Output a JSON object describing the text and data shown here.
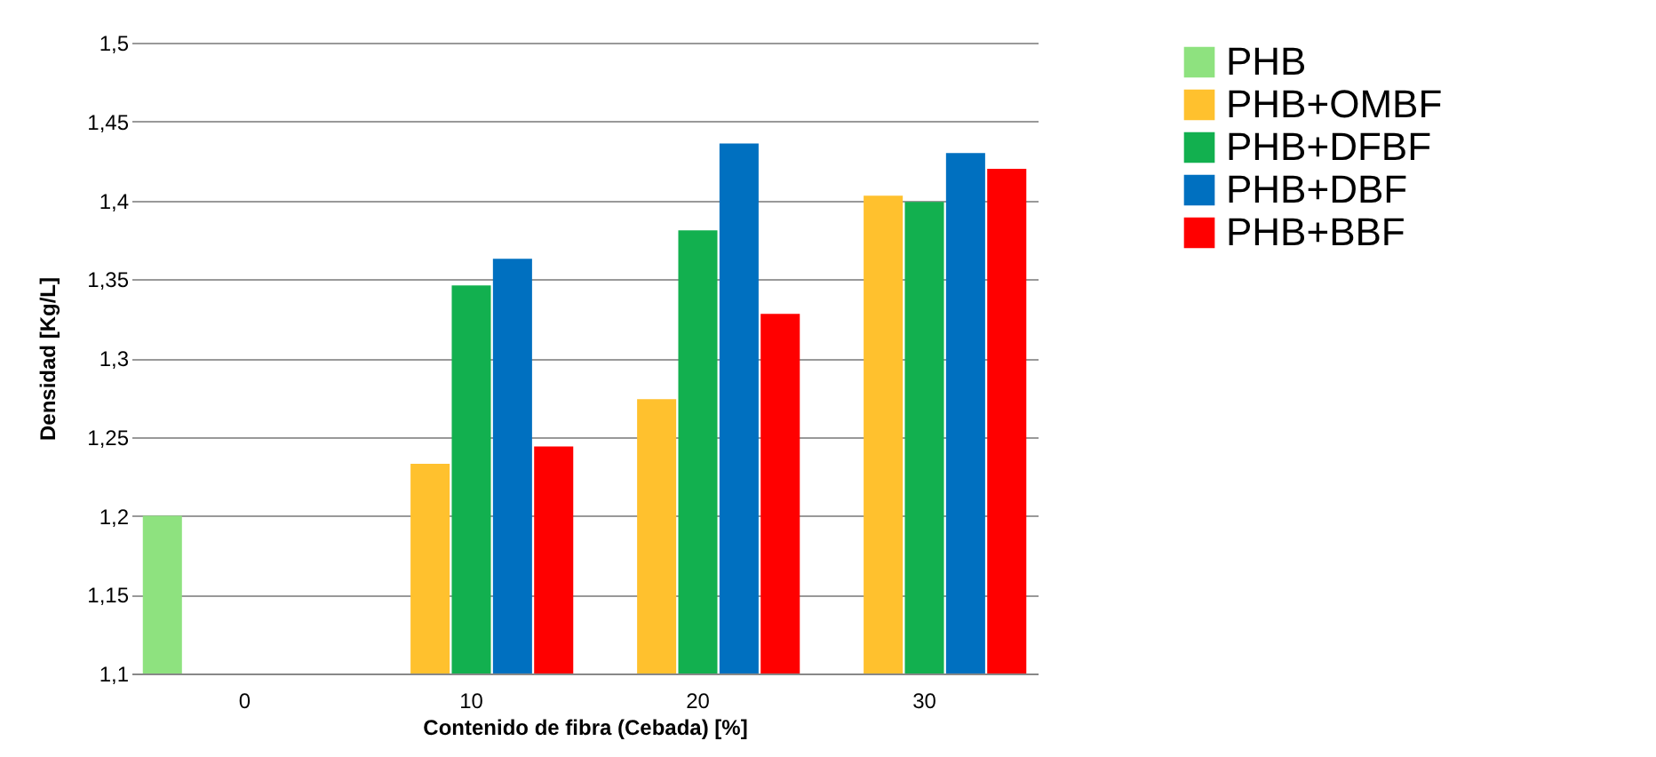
{
  "chart_data": {
    "type": "bar",
    "xlabel": "Contenido de fibra (Cebada) [%]",
    "ylabel": "Densidad [Kg/L]",
    "categories": [
      "0",
      "10",
      "20",
      "30"
    ],
    "series": [
      {
        "name": "PHB",
        "color": "#8ee27f",
        "values": [
          1.2,
          null,
          null,
          null
        ]
      },
      {
        "name": "PHB+OMBF",
        "color": "#ffc12e",
        "values": [
          null,
          1.233,
          1.274,
          1.403
        ]
      },
      {
        "name": "PHB+DFBF",
        "color": "#12b04f",
        "values": [
          null,
          1.346,
          1.381,
          1.399
        ]
      },
      {
        "name": "PHB+DBF",
        "color": "#0070c0",
        "values": [
          null,
          1.363,
          1.436,
          1.43
        ]
      },
      {
        "name": "PHB+BBF",
        "color": "#ff0000",
        "values": [
          null,
          1.244,
          1.328,
          1.42
        ]
      }
    ],
    "ylim": [
      1.1,
      1.5
    ],
    "yticks": [
      {
        "value": 1.1,
        "label": "1,1"
      },
      {
        "value": 1.15,
        "label": "1,15"
      },
      {
        "value": 1.2,
        "label": "1,2"
      },
      {
        "value": 1.25,
        "label": "1,25"
      },
      {
        "value": 1.3,
        "label": "1,3"
      },
      {
        "value": 1.35,
        "label": "1,35"
      },
      {
        "value": 1.4,
        "label": "1,4"
      },
      {
        "value": 1.45,
        "label": "1,45"
      },
      {
        "value": 1.5,
        "label": "1,5"
      }
    ],
    "grid": "y",
    "legend": "right"
  }
}
